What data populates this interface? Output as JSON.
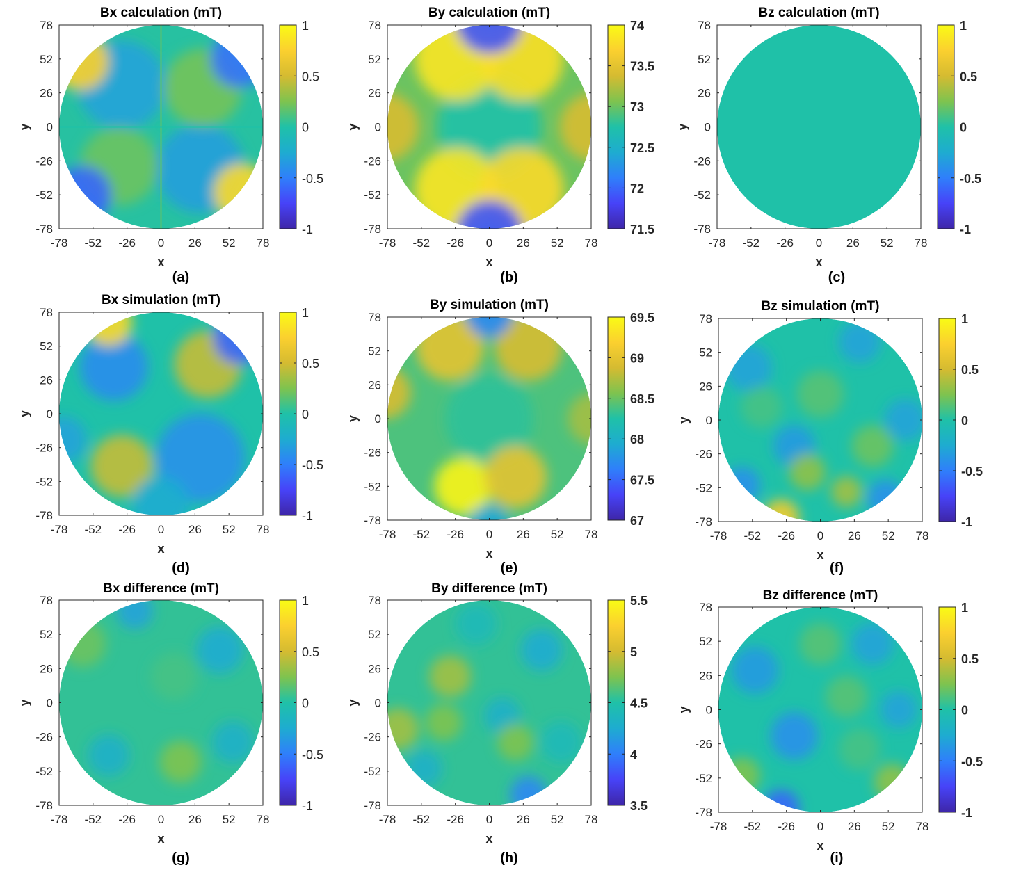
{
  "figure": {
    "x_ticks": [
      "-78",
      "-52",
      "-26",
      "0",
      "26",
      "52",
      "78"
    ],
    "y_ticks": [
      "78",
      "52",
      "26",
      "0",
      "-26",
      "-52",
      "-78"
    ],
    "xlabel": "x",
    "ylabel": "y"
  },
  "colormap": [
    "#3e26a8",
    "#4743f8",
    "#2f7ffb",
    "#1eacd0",
    "#1fc1a8",
    "#7ec34f",
    "#d5bb31",
    "#fbd02f",
    "#f9fb15"
  ],
  "chart_data": [
    {
      "type": "heatmap",
      "id": "a",
      "panel_label": "(a)",
      "title": "Bx calculation (mT)",
      "xlabel": "x",
      "ylabel": "y",
      "xlim": [
        -78,
        78
      ],
      "ylim": [
        -78,
        78
      ],
      "clim": [
        -1,
        1
      ],
      "colorbar_ticks": [
        "1",
        "0.5",
        "0",
        "-0.5",
        "-1"
      ],
      "colorbar_bold": false,
      "pattern": "Four-lobed quadrant pattern: about +0.2 upper-right and lower-left, about -0.3 upper-left and lower-right, near +0.6 to +0.8 at the lower-right and upper-left rim, near -0.6 at the upper-right and lower-left rim"
    },
    {
      "type": "heatmap",
      "id": "b",
      "panel_label": "(b)",
      "title": "By calculation (mT)",
      "xlabel": "x",
      "ylabel": "y",
      "xlim": [
        -78,
        78
      ],
      "ylim": [
        -78,
        78
      ],
      "clim": [
        71.5,
        74
      ],
      "colorbar_ticks": [
        "74",
        "73.5",
        "73",
        "72.5",
        "72",
        "71.5"
      ],
      "colorbar_bold": true,
      "pattern": "Central ellipse near 72.7, horizontal bands near 73.8 around y = ±50, rim near 72 at top and bottom"
    },
    {
      "type": "heatmap",
      "id": "c",
      "panel_label": "(c)",
      "title": "Bz calculation (mT)",
      "xlabel": "x",
      "ylabel": "y",
      "xlim": [
        -78,
        78
      ],
      "ylim": [
        -78,
        78
      ],
      "clim": [
        -1,
        1
      ],
      "colorbar_ticks": [
        "1",
        "0.5",
        "0",
        "-0.5",
        "-1"
      ],
      "colorbar_bold": true,
      "pattern": "Uniform value near 0 across the disk"
    },
    {
      "type": "heatmap",
      "id": "d",
      "panel_label": "(d)",
      "title": "Bx simulation (mT)",
      "xlabel": "x",
      "ylabel": "y",
      "xlim": [
        -78,
        78
      ],
      "ylim": [
        -78,
        78
      ],
      "clim": [
        -1,
        1
      ],
      "colorbar_ticks": [
        "1",
        "0.5",
        "0",
        "-0.5",
        "-1"
      ],
      "colorbar_bold": false,
      "pattern": "Quadrant pattern like (a) with noise: lobes about ±0.4, +0.8 at upper-left rim, -0.6 at upper-right rim"
    },
    {
      "type": "heatmap",
      "id": "e",
      "panel_label": "(e)",
      "title": "By simulation (mT)",
      "xlabel": "x",
      "ylabel": "y",
      "xlim": [
        -78,
        78
      ],
      "ylim": [
        -78,
        78
      ],
      "clim": [
        67,
        69.5
      ],
      "colorbar_ticks": [
        "69.5",
        "69",
        "68.5",
        "68",
        "67.5",
        "67"
      ],
      "colorbar_bold": true,
      "pattern": "Central region near 68.3, high bands near 69 to 69.5 (peak at lower-left around x = -20, y = -52), rim near 67.7"
    },
    {
      "type": "heatmap",
      "id": "f",
      "panel_label": "(f)",
      "title": "Bz simulation (mT)",
      "xlabel": "x",
      "ylabel": "y",
      "xlim": [
        -78,
        78
      ],
      "ylim": [
        -78,
        78
      ],
      "clim": [
        -1,
        1
      ],
      "colorbar_ticks": [
        "1",
        "0.5",
        "0",
        "-0.5",
        "-1"
      ],
      "colorbar_bold": true,
      "pattern": "Blotchy noise between -0.4 and +0.3, hot spot near +0.7 at the bottom rim around x = -30"
    },
    {
      "type": "heatmap",
      "id": "g",
      "panel_label": "(g)",
      "title": "Bx difference (mT)",
      "xlabel": "x",
      "ylabel": "y",
      "xlim": [
        -78,
        78
      ],
      "ylim": [
        -78,
        78
      ],
      "clim": [
        -1,
        1
      ],
      "colorbar_ticks": [
        "1",
        "0.5",
        "0",
        "-0.5",
        "-1"
      ],
      "colorbar_bold": false,
      "pattern": "Smooth noise between -0.3 and +0.25 across the disk"
    },
    {
      "type": "heatmap",
      "id": "h",
      "panel_label": "(h)",
      "title": "By difference (mT)",
      "xlabel": "x",
      "ylabel": "y",
      "xlim": [
        -78,
        78
      ],
      "ylim": [
        -78,
        78
      ],
      "clim": [
        3.5,
        5.5
      ],
      "colorbar_ticks": [
        "5.5",
        "5",
        "4.5",
        "4",
        "3.5"
      ],
      "colorbar_bold": true,
      "pattern": "Smooth noise between 4.2 and 4.8 across the disk, low spot near 4 at the bottom rim"
    },
    {
      "type": "heatmap",
      "id": "i",
      "panel_label": "(i)",
      "title": "Bz difference (mT)",
      "xlabel": "x",
      "ylabel": "y",
      "xlim": [
        -78,
        78
      ],
      "ylim": [
        -78,
        78
      ],
      "clim": [
        -1,
        1
      ],
      "colorbar_ticks": [
        "1",
        "0.5",
        "0",
        "-0.5",
        "-1"
      ],
      "colorbar_bold": true,
      "pattern": "Blotchy noise between -0.5 and +0.3, low spot near -0.6 at the bottom rim"
    }
  ]
}
